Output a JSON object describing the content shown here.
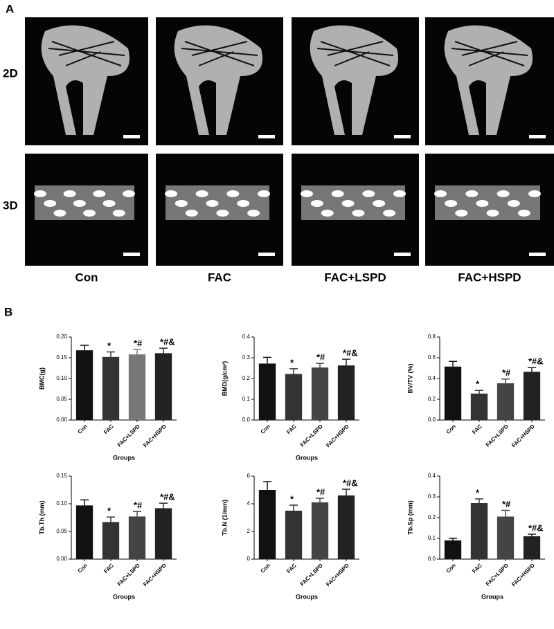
{
  "panels": {
    "a": "A",
    "b": "B",
    "rows": [
      "2D",
      "3D"
    ],
    "columns": [
      "Con",
      "FAC",
      "FAC+LSPD",
      "FAC+HSPD"
    ]
  },
  "chart_data": [
    {
      "type": "bar",
      "ylabel": "BMC(g)",
      "xlabel": "Groups",
      "categories": [
        "Con",
        "FAC",
        "FAC+LSPD",
        "FAC+HSPD"
      ],
      "values": [
        0.168,
        0.152,
        0.158,
        0.161
      ],
      "errors": [
        0.012,
        0.012,
        0.012,
        0.012
      ],
      "colors": [
        "#111111",
        "#333333",
        "#777777",
        "#222222"
      ],
      "ylim": [
        0,
        0.2
      ],
      "yticks": [
        {
          "value": 0,
          "label": "0.00"
        },
        {
          "value": 0.05,
          "label": "0.05"
        },
        {
          "value": 0.1,
          "label": "0.10"
        },
        {
          "value": 0.15,
          "label": "0.15"
        },
        {
          "value": 0.2,
          "label": "0.20"
        }
      ],
      "annotations": [
        {
          "category": "FAC",
          "text": "*"
        },
        {
          "category": "FAC+LSPD",
          "text": "*#"
        },
        {
          "category": "FAC+HSPD",
          "text": "*#&"
        }
      ]
    },
    {
      "type": "bar",
      "ylabel": "BMD(g/cm²)",
      "xlabel": "Groups",
      "categories": [
        "Con",
        "FAC",
        "FAC+LSPD",
        "FAC+HSPD"
      ],
      "values": [
        0.272,
        0.222,
        0.253,
        0.263
      ],
      "errors": [
        0.03,
        0.025,
        0.02,
        0.03
      ],
      "colors": [
        "#111111",
        "#333333",
        "#444444",
        "#222222"
      ],
      "ylim": [
        0,
        0.4
      ],
      "yticks": [
        {
          "value": 0,
          "label": "0.0"
        },
        0.1,
        0.2,
        0.3,
        0.4
      ],
      "annotations": [
        {
          "category": "FAC",
          "text": "*"
        },
        {
          "category": "FAC+LSPD",
          "text": "*#"
        },
        {
          "category": "FAC+HSPD",
          "text": "*#&"
        }
      ]
    },
    {
      "type": "bar",
      "ylabel": "BV/TV (%)",
      "categories": [
        "Con",
        "FAC",
        "FAC+LSPD",
        "FAC+HSPD"
      ],
      "values": [
        0.515,
        0.255,
        0.355,
        0.465
      ],
      "errors": [
        0.05,
        0.03,
        0.04,
        0.04
      ],
      "colors": [
        "#111111",
        "#333333",
        "#444444",
        "#222222"
      ],
      "ylim": [
        0,
        0.8
      ],
      "yticks": [
        {
          "value": 0,
          "label": "0.0"
        },
        0.2,
        0.4,
        0.6,
        0.8
      ],
      "annotations": [
        {
          "category": "FAC",
          "text": "*"
        },
        {
          "category": "FAC+LSPD",
          "text": "*#"
        },
        {
          "category": "FAC+HSPD",
          "text": "*#&"
        }
      ]
    },
    {
      "type": "bar",
      "ylabel": "Tb.Th (mm)",
      "xlabel": "Groups",
      "categories": [
        "Con",
        "FAC",
        "FAC+LSPD",
        "FAC+HSPD"
      ],
      "values": [
        0.097,
        0.067,
        0.077,
        0.092
      ],
      "errors": [
        0.01,
        0.009,
        0.009,
        0.009
      ],
      "colors": [
        "#111111",
        "#333333",
        "#444444",
        "#222222"
      ],
      "ylim": [
        0,
        0.15
      ],
      "yticks": [
        {
          "value": 0,
          "label": "0.00"
        },
        0.05,
        {
          "value": 0.1,
          "label": "0.10"
        },
        0.15
      ],
      "annotations": [
        {
          "category": "FAC",
          "text": "*"
        },
        {
          "category": "FAC+LSPD",
          "text": "*#"
        },
        {
          "category": "FAC+HSPD",
          "text": "*#&"
        }
      ]
    },
    {
      "type": "bar",
      "ylabel": "Tb.N (1/mm)",
      "xlabel": "Groups",
      "categories": [
        "Con",
        "FAC",
        "FAC+LSPD",
        "FAC+HSPD"
      ],
      "values": [
        5.0,
        3.5,
        4.1,
        4.6
      ],
      "errors": [
        0.6,
        0.4,
        0.3,
        0.45
      ],
      "colors": [
        "#111111",
        "#333333",
        "#444444",
        "#222222"
      ],
      "ylim": [
        0,
        6
      ],
      "yticks": [
        0,
        2,
        4,
        6
      ],
      "annotations": [
        {
          "category": "FAC",
          "text": "*"
        },
        {
          "category": "FAC+LSPD",
          "text": "*#"
        },
        {
          "category": "FAC+HSPD",
          "text": "*#&"
        }
      ]
    },
    {
      "type": "bar",
      "ylabel": "Tb.Sp (mm)",
      "xlabel": "Groups",
      "categories": [
        "Con",
        "FAC",
        "FAC+LSPD",
        "FAC+HSPD"
      ],
      "values": [
        0.09,
        0.27,
        0.205,
        0.11
      ],
      "errors": [
        0.01,
        0.02,
        0.03,
        0.01
      ],
      "colors": [
        "#111111",
        "#333333",
        "#444444",
        "#222222"
      ],
      "ylim": [
        0,
        0.4
      ],
      "yticks": [
        {
          "value": 0,
          "label": "0.0"
        },
        0.1,
        0.2,
        0.3,
        0.4
      ],
      "annotations": [
        {
          "category": "FAC",
          "text": "*"
        },
        {
          "category": "FAC+LSPD",
          "text": "*#"
        },
        {
          "category": "FAC+HSPD",
          "text": "*#&"
        }
      ]
    }
  ]
}
